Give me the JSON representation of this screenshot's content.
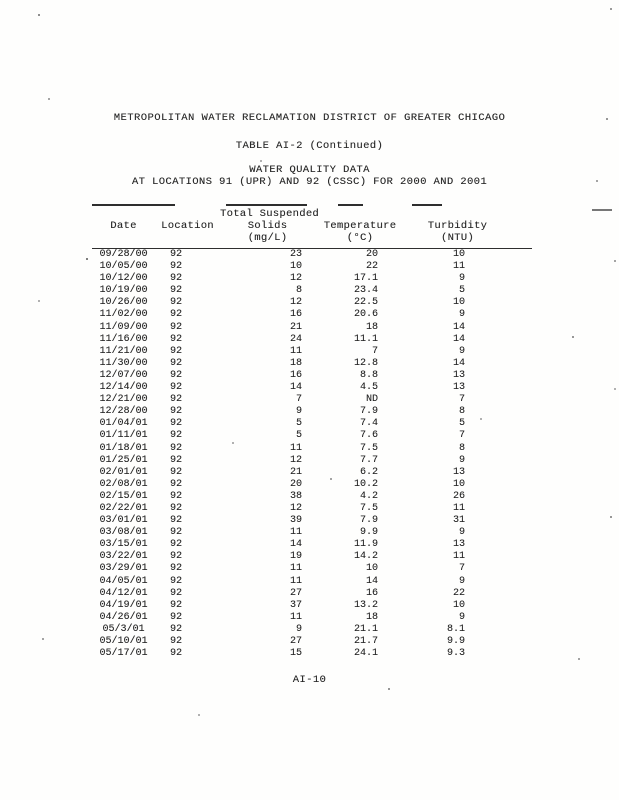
{
  "document": {
    "org_title": "METROPOLITAN WATER RECLAMATION DISTRICT OF GREATER CHICAGO",
    "table_title": "TABLE AI-2 (Continued)",
    "subtitle_line1": "WATER QUALITY DATA",
    "subtitle_line2": "AT LOCATIONS 91 (UPR) AND 92 (CSSC) FOR 2000 AND 2001",
    "page_number": "AI-10"
  },
  "table": {
    "headers": [
      {
        "lines": [
          "",
          "Date",
          ""
        ]
      },
      {
        "lines": [
          "",
          "Location",
          ""
        ]
      },
      {
        "lines": [
          "Total Suspended",
          "Solids",
          "(mg/L)"
        ]
      },
      {
        "lines": [
          "",
          "Temperature",
          "(°C)"
        ]
      },
      {
        "lines": [
          "",
          "Turbidity",
          "(NTU)"
        ]
      }
    ],
    "rows": [
      [
        "09/28/00",
        "92",
        "23",
        "20",
        "10"
      ],
      [
        "10/05/00",
        "92",
        "10",
        "22",
        "11"
      ],
      [
        "10/12/00",
        "92",
        "12",
        "17.1",
        "9"
      ],
      [
        "10/19/00",
        "92",
        "8",
        "23.4",
        "5"
      ],
      [
        "10/26/00",
        "92",
        "12",
        "22.5",
        "10"
      ],
      [
        "11/02/00",
        "92",
        "16",
        "20.6",
        "9"
      ],
      [
        "11/09/00",
        "92",
        "21",
        "18",
        "14"
      ],
      [
        "11/16/00",
        "92",
        "24",
        "11.1",
        "14"
      ],
      [
        "11/21/00",
        "92",
        "11",
        "7",
        "9"
      ],
      [
        "11/30/00",
        "92",
        "18",
        "12.8",
        "14"
      ],
      [
        "12/07/00",
        "92",
        "16",
        "8.8",
        "13"
      ],
      [
        "12/14/00",
        "92",
        "14",
        "4.5",
        "13"
      ],
      [
        "12/21/00",
        "92",
        "7",
        "ND",
        "7"
      ],
      [
        "12/28/00",
        "92",
        "9",
        "7.9",
        "8"
      ],
      [
        "01/04/01",
        "92",
        "5",
        "7.4",
        "5"
      ],
      [
        "01/11/01",
        "92",
        "5",
        "7.6",
        "7"
      ],
      [
        "01/18/01",
        "92",
        "11",
        "7.5",
        "8"
      ],
      [
        "01/25/01",
        "92",
        "12",
        "7.7",
        "9"
      ],
      [
        "02/01/01",
        "92",
        "21",
        "6.2",
        "13"
      ],
      [
        "02/08/01",
        "92",
        "20",
        "10.2",
        "10"
      ],
      [
        "02/15/01",
        "92",
        "38",
        "4.2",
        "26"
      ],
      [
        "02/22/01",
        "92",
        "12",
        "7.5",
        "11"
      ],
      [
        "03/01/01",
        "92",
        "39",
        "7.9",
        "31"
      ],
      [
        "03/08/01",
        "92",
        "11",
        "9.9",
        "9"
      ],
      [
        "03/15/01",
        "92",
        "14",
        "11.9",
        "13"
      ],
      [
        "03/22/01",
        "92",
        "19",
        "14.2",
        "11"
      ],
      [
        "03/29/01",
        "92",
        "11",
        "10",
        "7"
      ],
      [
        "04/05/01",
        "92",
        "11",
        "14",
        "9"
      ],
      [
        "04/12/01",
        "92",
        "27",
        "16",
        "22"
      ],
      [
        "04/19/01",
        "92",
        "37",
        "13.2",
        "10"
      ],
      [
        "04/26/01",
        "92",
        "11",
        "18",
        "9"
      ],
      [
        "05/3/01",
        "92",
        "9",
        "21.1",
        "8.1"
      ],
      [
        "05/10/01",
        "92",
        "27",
        "21.7",
        "9.9"
      ],
      [
        "05/17/01",
        "92",
        "15",
        "24.1",
        "9.3"
      ]
    ]
  }
}
